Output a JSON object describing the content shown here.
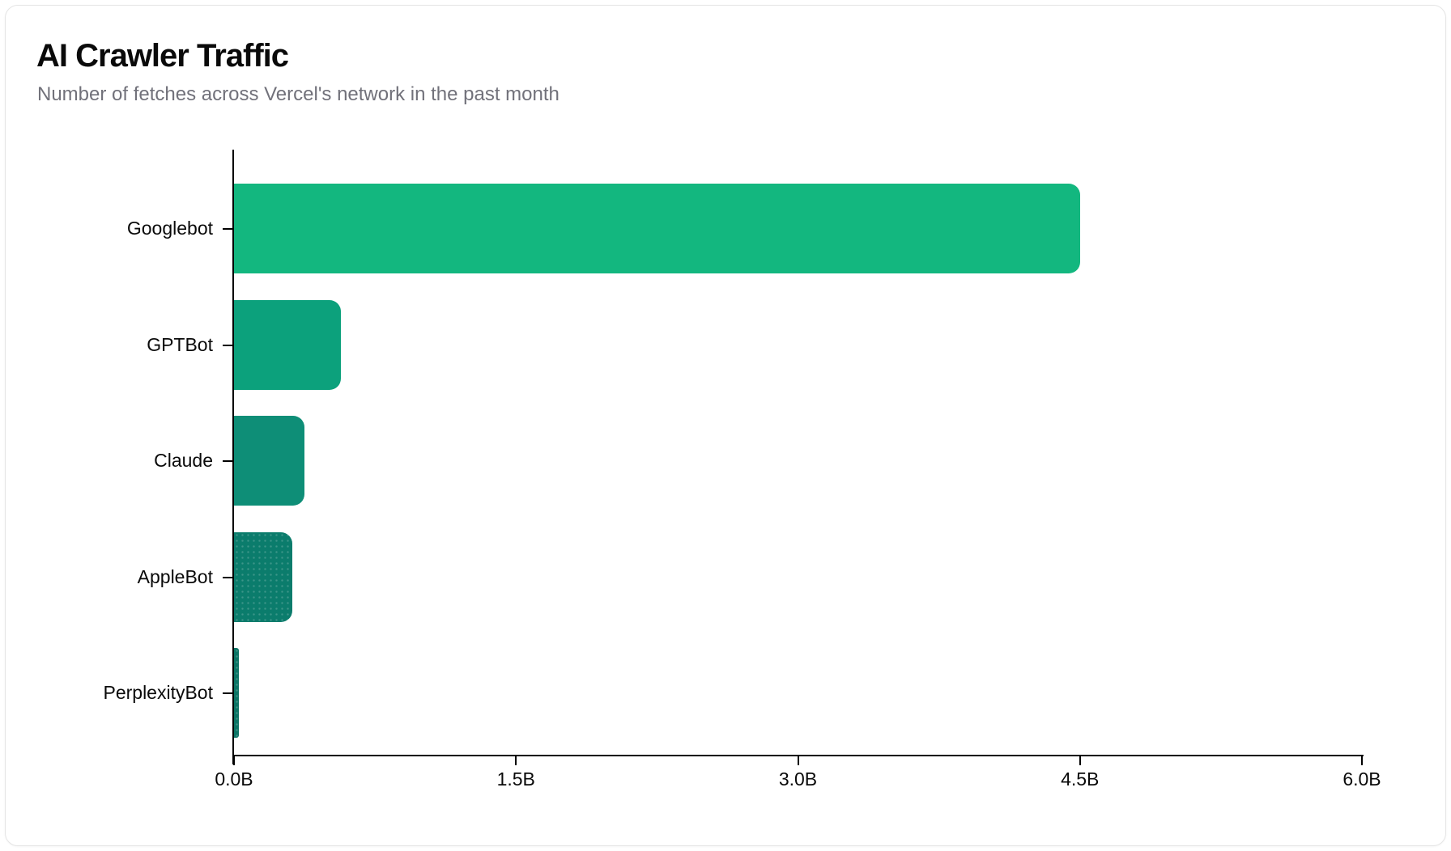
{
  "card": {
    "title": "AI Crawler Traffic",
    "subtitle": "Number of fetches across Vercel's network in the past month"
  },
  "chart_data": {
    "type": "bar",
    "orientation": "horizontal",
    "title": "AI Crawler Traffic",
    "subtitle": "Number of fetches across Vercel's network in the past month",
    "categories": [
      "Googlebot",
      "GPTBot",
      "Claude",
      "AppleBot",
      "PerplexityBot"
    ],
    "values_billions": [
      4.5,
      0.57,
      0.375,
      0.31,
      0.025
    ],
    "xlabel": "",
    "ylabel": "",
    "xlim": [
      0,
      6
    ],
    "x_tick_values": [
      0,
      1.5,
      3.0,
      4.5,
      6.0
    ],
    "x_tick_labels": [
      "0.0B",
      "1.5B",
      "3.0B",
      "4.5B",
      "6.0B"
    ],
    "grid": false,
    "legend": false,
    "bar_colors": [
      "#13b77f",
      "#0ca17c",
      "#0e8e77",
      "#0b7c6c",
      "#0b7465"
    ],
    "textured_bar_indices": [
      3,
      4
    ],
    "axis_color": "#000000",
    "background_color": "#ffffff"
  }
}
